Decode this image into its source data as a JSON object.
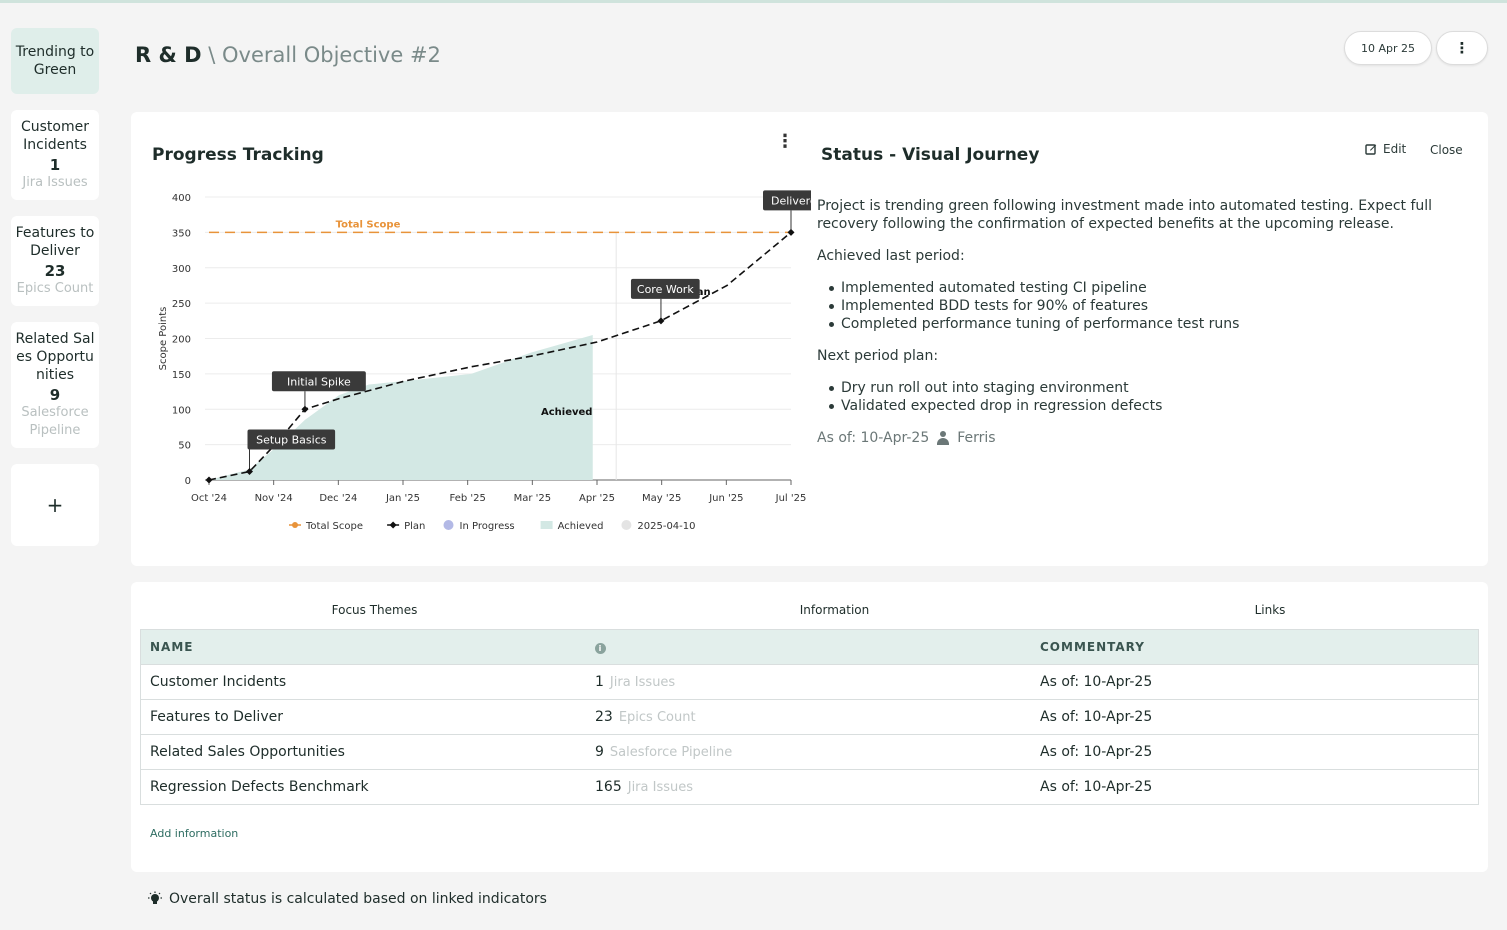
{
  "rail": {
    "status_label": "Trending to Green",
    "cards": [
      {
        "label": "Customer Incidents",
        "value": "1",
        "unit": "Jira Issues"
      },
      {
        "label": "Features to Deliver",
        "value": "23",
        "unit": "Epics Count"
      },
      {
        "label": "Related Sales Opportunities",
        "value": "9",
        "unit": "Salesforce Pipeline"
      }
    ],
    "add_label": "+"
  },
  "header": {
    "org": "R & D",
    "path": "\\ Overall Objective #2",
    "date": "10 Apr 25",
    "menu_icon": "kebab-icon"
  },
  "progress": {
    "title": "Progress Tracking"
  },
  "chart_data": {
    "type": "line",
    "xlabel": "",
    "ylabel": "Scope Points",
    "ylim": [
      0,
      400
    ],
    "yticks": [
      0,
      50,
      100,
      150,
      200,
      250,
      300,
      350,
      400
    ],
    "xticks": [
      "Oct '24",
      "Nov '24",
      "Dec '24",
      "Jan '25",
      "Feb '25",
      "Mar '25",
      "Apr '25",
      "May '25",
      "Jun '25",
      "Jul '25"
    ],
    "total_scope": {
      "name": "Total Scope",
      "value": 350,
      "color": "#e8933a"
    },
    "plan": {
      "name": "Plan",
      "color": "#111111",
      "points": [
        {
          "x": "2024-10-01",
          "y": 0
        },
        {
          "x": "2024-10-20",
          "y": 12
        },
        {
          "x": "2024-11-01",
          "y": 50
        },
        {
          "x": "2024-11-15",
          "y": 100
        },
        {
          "x": "2024-12-01",
          "y": 115
        },
        {
          "x": "2025-01-01",
          "y": 140
        },
        {
          "x": "2025-02-01",
          "y": 160
        },
        {
          "x": "2025-03-01",
          "y": 175
        },
        {
          "x": "2025-04-01",
          "y": 195
        },
        {
          "x": "2025-05-01",
          "y": 225
        },
        {
          "x": "2025-06-01",
          "y": 275
        },
        {
          "x": "2025-07-01",
          "y": 350
        }
      ]
    },
    "achieved": {
      "name": "Achieved",
      "color": "#d3e8e4",
      "points": [
        {
          "x": "2024-10-01",
          "y": 0
        },
        {
          "x": "2024-10-20",
          "y": 15
        },
        {
          "x": "2024-11-01",
          "y": 45
        },
        {
          "x": "2024-11-15",
          "y": 85
        },
        {
          "x": "2024-12-01",
          "y": 120
        },
        {
          "x": "2024-12-15",
          "y": 135
        },
        {
          "x": "2025-01-01",
          "y": 140
        },
        {
          "x": "2025-02-01",
          "y": 150
        },
        {
          "x": "2025-03-01",
          "y": 180
        },
        {
          "x": "2025-03-30",
          "y": 205
        }
      ]
    },
    "today_marker": "2025-04-10",
    "annotations": [
      {
        "label": "Setup Basics",
        "x": "2024-10-20",
        "y": 12
      },
      {
        "label": "Initial Spike",
        "x": "2024-11-15",
        "y": 100
      },
      {
        "label": "Core Work",
        "x": "2025-05-01",
        "y": 225
      },
      {
        "label": "Delivered",
        "x": "2025-07-01",
        "y": 350
      }
    ],
    "series_labels": {
      "total_scope": "Total Scope",
      "plan": "Plan",
      "achieved": "Achieved"
    },
    "legend": [
      {
        "name": "Total Scope",
        "color": "#e8933a",
        "shape": "line-dot"
      },
      {
        "name": "Plan",
        "color": "#111111",
        "shape": "line-diamond"
      },
      {
        "name": "In Progress",
        "color": "#b3b9e6",
        "shape": "dot"
      },
      {
        "name": "Achieved",
        "color": "#d3e8e4",
        "shape": "rect"
      },
      {
        "name": "2025-04-10",
        "color": "#e4e4e4",
        "shape": "dot"
      }
    ],
    "legend_position": "bottom",
    "grid": true
  },
  "status": {
    "title": "Status - Visual Journey",
    "edit_label": "Edit",
    "close_label": "Close",
    "summary": "Project is trending green following investment made into automated testing. Expect full recovery following the confirmation of expected benefits at the upcoming release.",
    "achieved_heading": "Achieved last period:",
    "achieved_items": [
      "Implemented automated testing CI pipeline",
      "Implemented BDD tests for 90% of features",
      "Completed performance tuning of performance test runs"
    ],
    "next_heading": "Next period plan:",
    "next_items": [
      "Dry run roll out into staging environment",
      "Validated expected drop in regression defects"
    ],
    "as_of": "As of: 10-Apr-25",
    "author": "Ferris"
  },
  "tabs": [
    "Focus Themes",
    "Information",
    "Links"
  ],
  "table": {
    "headers": {
      "name": "NAME",
      "value_icon": "info-icon",
      "commentary": "COMMENTARY"
    },
    "rows": [
      {
        "name": "Customer Incidents",
        "value": "1",
        "unit": "Jira Issues",
        "commentary": "As of: 10-Apr-25"
      },
      {
        "name": "Features to Deliver",
        "value": "23",
        "unit": "Epics Count",
        "commentary": "As of: 10-Apr-25"
      },
      {
        "name": "Related Sales Opportunities",
        "value": "9",
        "unit": "Salesforce Pipeline",
        "commentary": "As of: 10-Apr-25"
      },
      {
        "name": "Regression Defects Benchmark",
        "value": "165",
        "unit": "Jira Issues",
        "commentary": "As of: 10-Apr-25"
      }
    ]
  },
  "add_information": "Add information",
  "footer_note": "Overall status is calculated based on linked indicators"
}
